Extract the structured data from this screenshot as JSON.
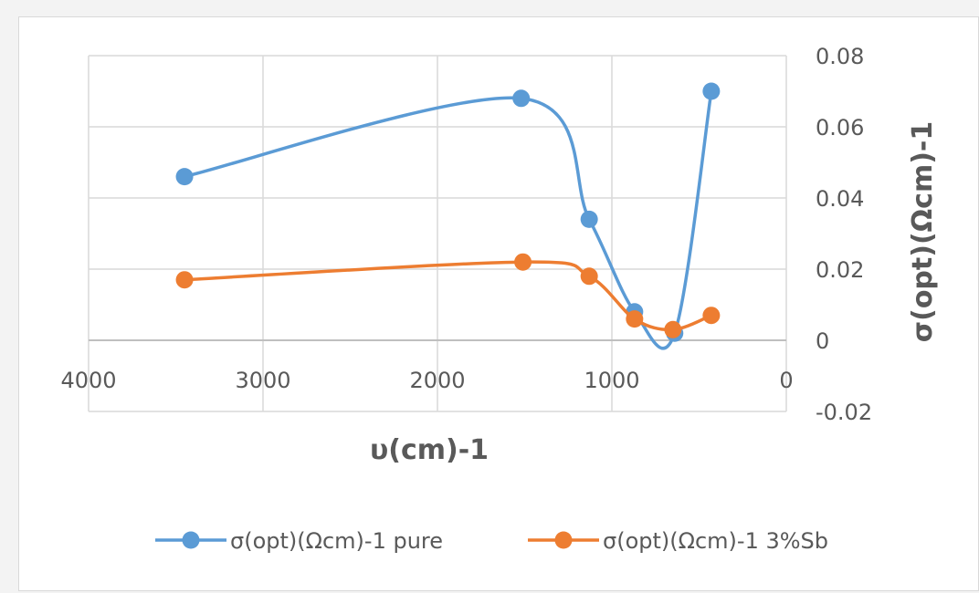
{
  "chart_data": {
    "type": "scatter",
    "xlabel": "υ(cm)-1",
    "ylabel": "σ(opt)(Ωcm)-1",
    "xlim": [
      0,
      4000
    ],
    "x_reversed": true,
    "ylim": [
      -0.02,
      0.08
    ],
    "x_ticks": [
      {
        "value": 4000,
        "label": "4000"
      },
      {
        "value": 3000,
        "label": "3000"
      },
      {
        "value": 2000,
        "label": "2000"
      },
      {
        "value": 1000,
        "label": "1000"
      },
      {
        "value": 0,
        "label": "0"
      }
    ],
    "y_ticks": [
      {
        "value": 0.08,
        "label": "0.08"
      },
      {
        "value": 0.06,
        "label": "0.06"
      },
      {
        "value": 0.04,
        "label": "0.04"
      },
      {
        "value": 0.02,
        "label": "0.02"
      },
      {
        "value": 0,
        "label": "0"
      },
      {
        "value": -0.02,
        "label": "-0.02"
      }
    ],
    "grid": true,
    "legend_position": "bottom",
    "smoothed_lines": true,
    "series": [
      {
        "name": "σ(opt)(Ωcm)-1 pure",
        "color": "#5b9bd5",
        "points": [
          {
            "x": 3450,
            "y": 0.046
          },
          {
            "x": 1520,
            "y": 0.068
          },
          {
            "x": 1130,
            "y": 0.034
          },
          {
            "x": 870,
            "y": 0.008
          },
          {
            "x": 640,
            "y": 0.002
          },
          {
            "x": 430,
            "y": 0.07
          }
        ]
      },
      {
        "name": "σ(opt)(Ωcm)-1 3%Sb",
        "color": "#ed7d31",
        "points": [
          {
            "x": 3450,
            "y": 0.017
          },
          {
            "x": 1510,
            "y": 0.022
          },
          {
            "x": 1130,
            "y": 0.018
          },
          {
            "x": 870,
            "y": 0.006
          },
          {
            "x": 650,
            "y": 0.003
          },
          {
            "x": 430,
            "y": 0.007
          }
        ]
      }
    ]
  }
}
